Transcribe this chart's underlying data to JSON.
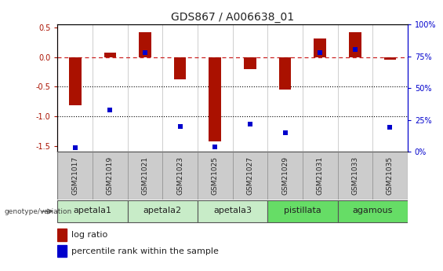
{
  "title": "GDS867 / A006638_01",
  "samples": [
    "GSM21017",
    "GSM21019",
    "GSM21021",
    "GSM21023",
    "GSM21025",
    "GSM21027",
    "GSM21029",
    "GSM21031",
    "GSM21033",
    "GSM21035"
  ],
  "log_ratio": [
    -0.82,
    0.07,
    0.42,
    -0.38,
    -1.42,
    -0.21,
    -0.55,
    0.31,
    0.42,
    -0.05
  ],
  "percentile_rank": [
    3,
    33,
    78,
    20,
    4,
    22,
    15,
    78,
    80,
    19
  ],
  "groups": [
    {
      "label": "apetala1",
      "samples": [
        0,
        1
      ],
      "color": "#c8ecc8"
    },
    {
      "label": "apetala2",
      "samples": [
        2,
        3
      ],
      "color": "#c8ecc8"
    },
    {
      "label": "apetala3",
      "samples": [
        4,
        5
      ],
      "color": "#c8ecc8"
    },
    {
      "label": "pistillata",
      "samples": [
        6,
        7
      ],
      "color": "#66dd66"
    },
    {
      "label": "agamous",
      "samples": [
        8,
        9
      ],
      "color": "#66dd66"
    }
  ],
  "ylim_left": [
    -1.6,
    0.55
  ],
  "ylim_right": [
    0,
    100
  ],
  "left_ticks": [
    0.5,
    0.0,
    -0.5,
    -1.0,
    -1.5
  ],
  "right_ticks": [
    100,
    75,
    50,
    25,
    0
  ],
  "bar_color": "#aa1100",
  "dot_color": "#0000cc",
  "zero_line_color": "#cc2222",
  "dotted_line_color": "#000000",
  "background_color": "#ffffff",
  "sample_box_color": "#cccccc",
  "title_fontsize": 10,
  "tick_fontsize": 7,
  "sample_fontsize": 6.5,
  "label_fontsize": 8,
  "legend_fontsize": 8,
  "bar_width": 0.35
}
